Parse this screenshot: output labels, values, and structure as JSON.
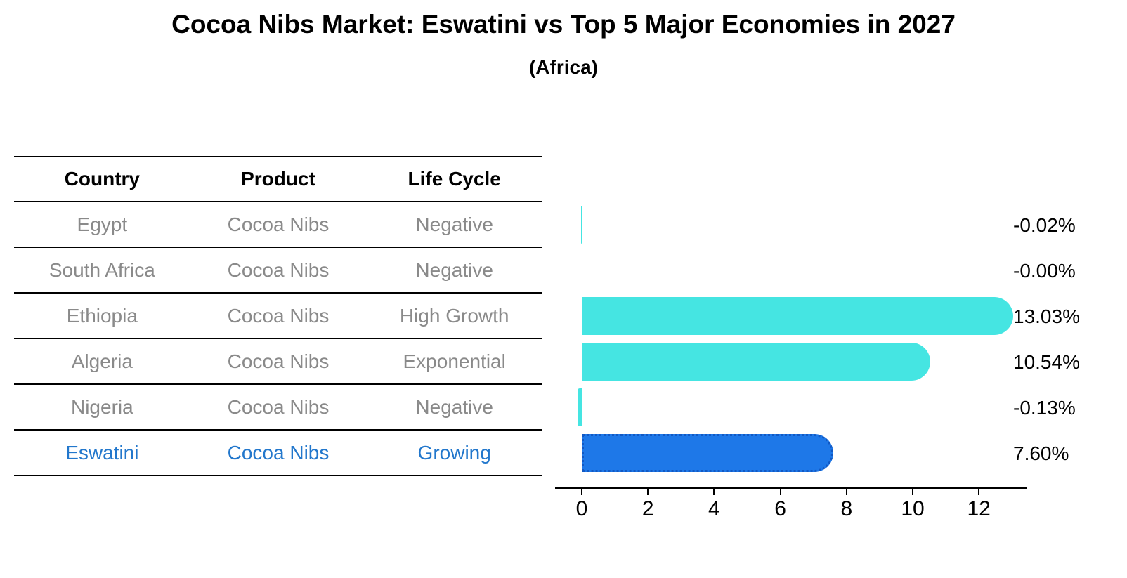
{
  "header": {
    "title": "Cocoa Nibs Market: Eswatini vs Top 5 Major Economies in 2027",
    "subtitle": "(Africa)"
  },
  "table": {
    "columns": [
      "Country",
      "Product",
      "Life Cycle"
    ],
    "rows": [
      {
        "country": "Egypt",
        "product": "Cocoa Nibs",
        "life_cycle": "Negative"
      },
      {
        "country": "South Africa",
        "product": "Cocoa Nibs",
        "life_cycle": "Negative"
      },
      {
        "country": "Ethiopia",
        "product": "Cocoa Nibs",
        "life_cycle": "High Growth"
      },
      {
        "country": "Algeria",
        "product": "Cocoa Nibs",
        "life_cycle": "Exponential"
      },
      {
        "country": "Nigeria",
        "product": "Cocoa Nibs",
        "life_cycle": "Negative"
      },
      {
        "country": "Eswatini",
        "product": "Cocoa Nibs",
        "life_cycle": "Growing"
      }
    ]
  },
  "chart_data": {
    "type": "bar",
    "orientation": "horizontal",
    "title": "Cocoa Nibs Market: Eswatini vs Top 5 Major Economies in 2027",
    "subtitle": "(Africa)",
    "categories": [
      "Egypt",
      "South Africa",
      "Ethiopia",
      "Algeria",
      "Nigeria",
      "Eswatini"
    ],
    "values": [
      -0.02,
      -0.0,
      13.03,
      10.54,
      -0.13,
      7.6
    ],
    "value_labels": [
      "-0.02%",
      "-0.00%",
      "13.03%",
      "10.54%",
      "-0.13%",
      "7.60%"
    ],
    "unit": "%",
    "xticks": [
      0,
      2,
      4,
      6,
      8,
      10,
      12
    ],
    "xlim": [
      -0.8,
      13.5
    ],
    "grid": false,
    "legend": false,
    "bar_color": "#45e5e2",
    "highlight_index": 5,
    "highlight_color": "#1e78e8",
    "highlight_border_color": "#1259c4",
    "highlight_border_style": "dotted"
  },
  "colors": {
    "table_text": "#8a8a8a",
    "highlight_text": "#2277cc",
    "axis": "#000000",
    "background": "#ffffff"
  }
}
